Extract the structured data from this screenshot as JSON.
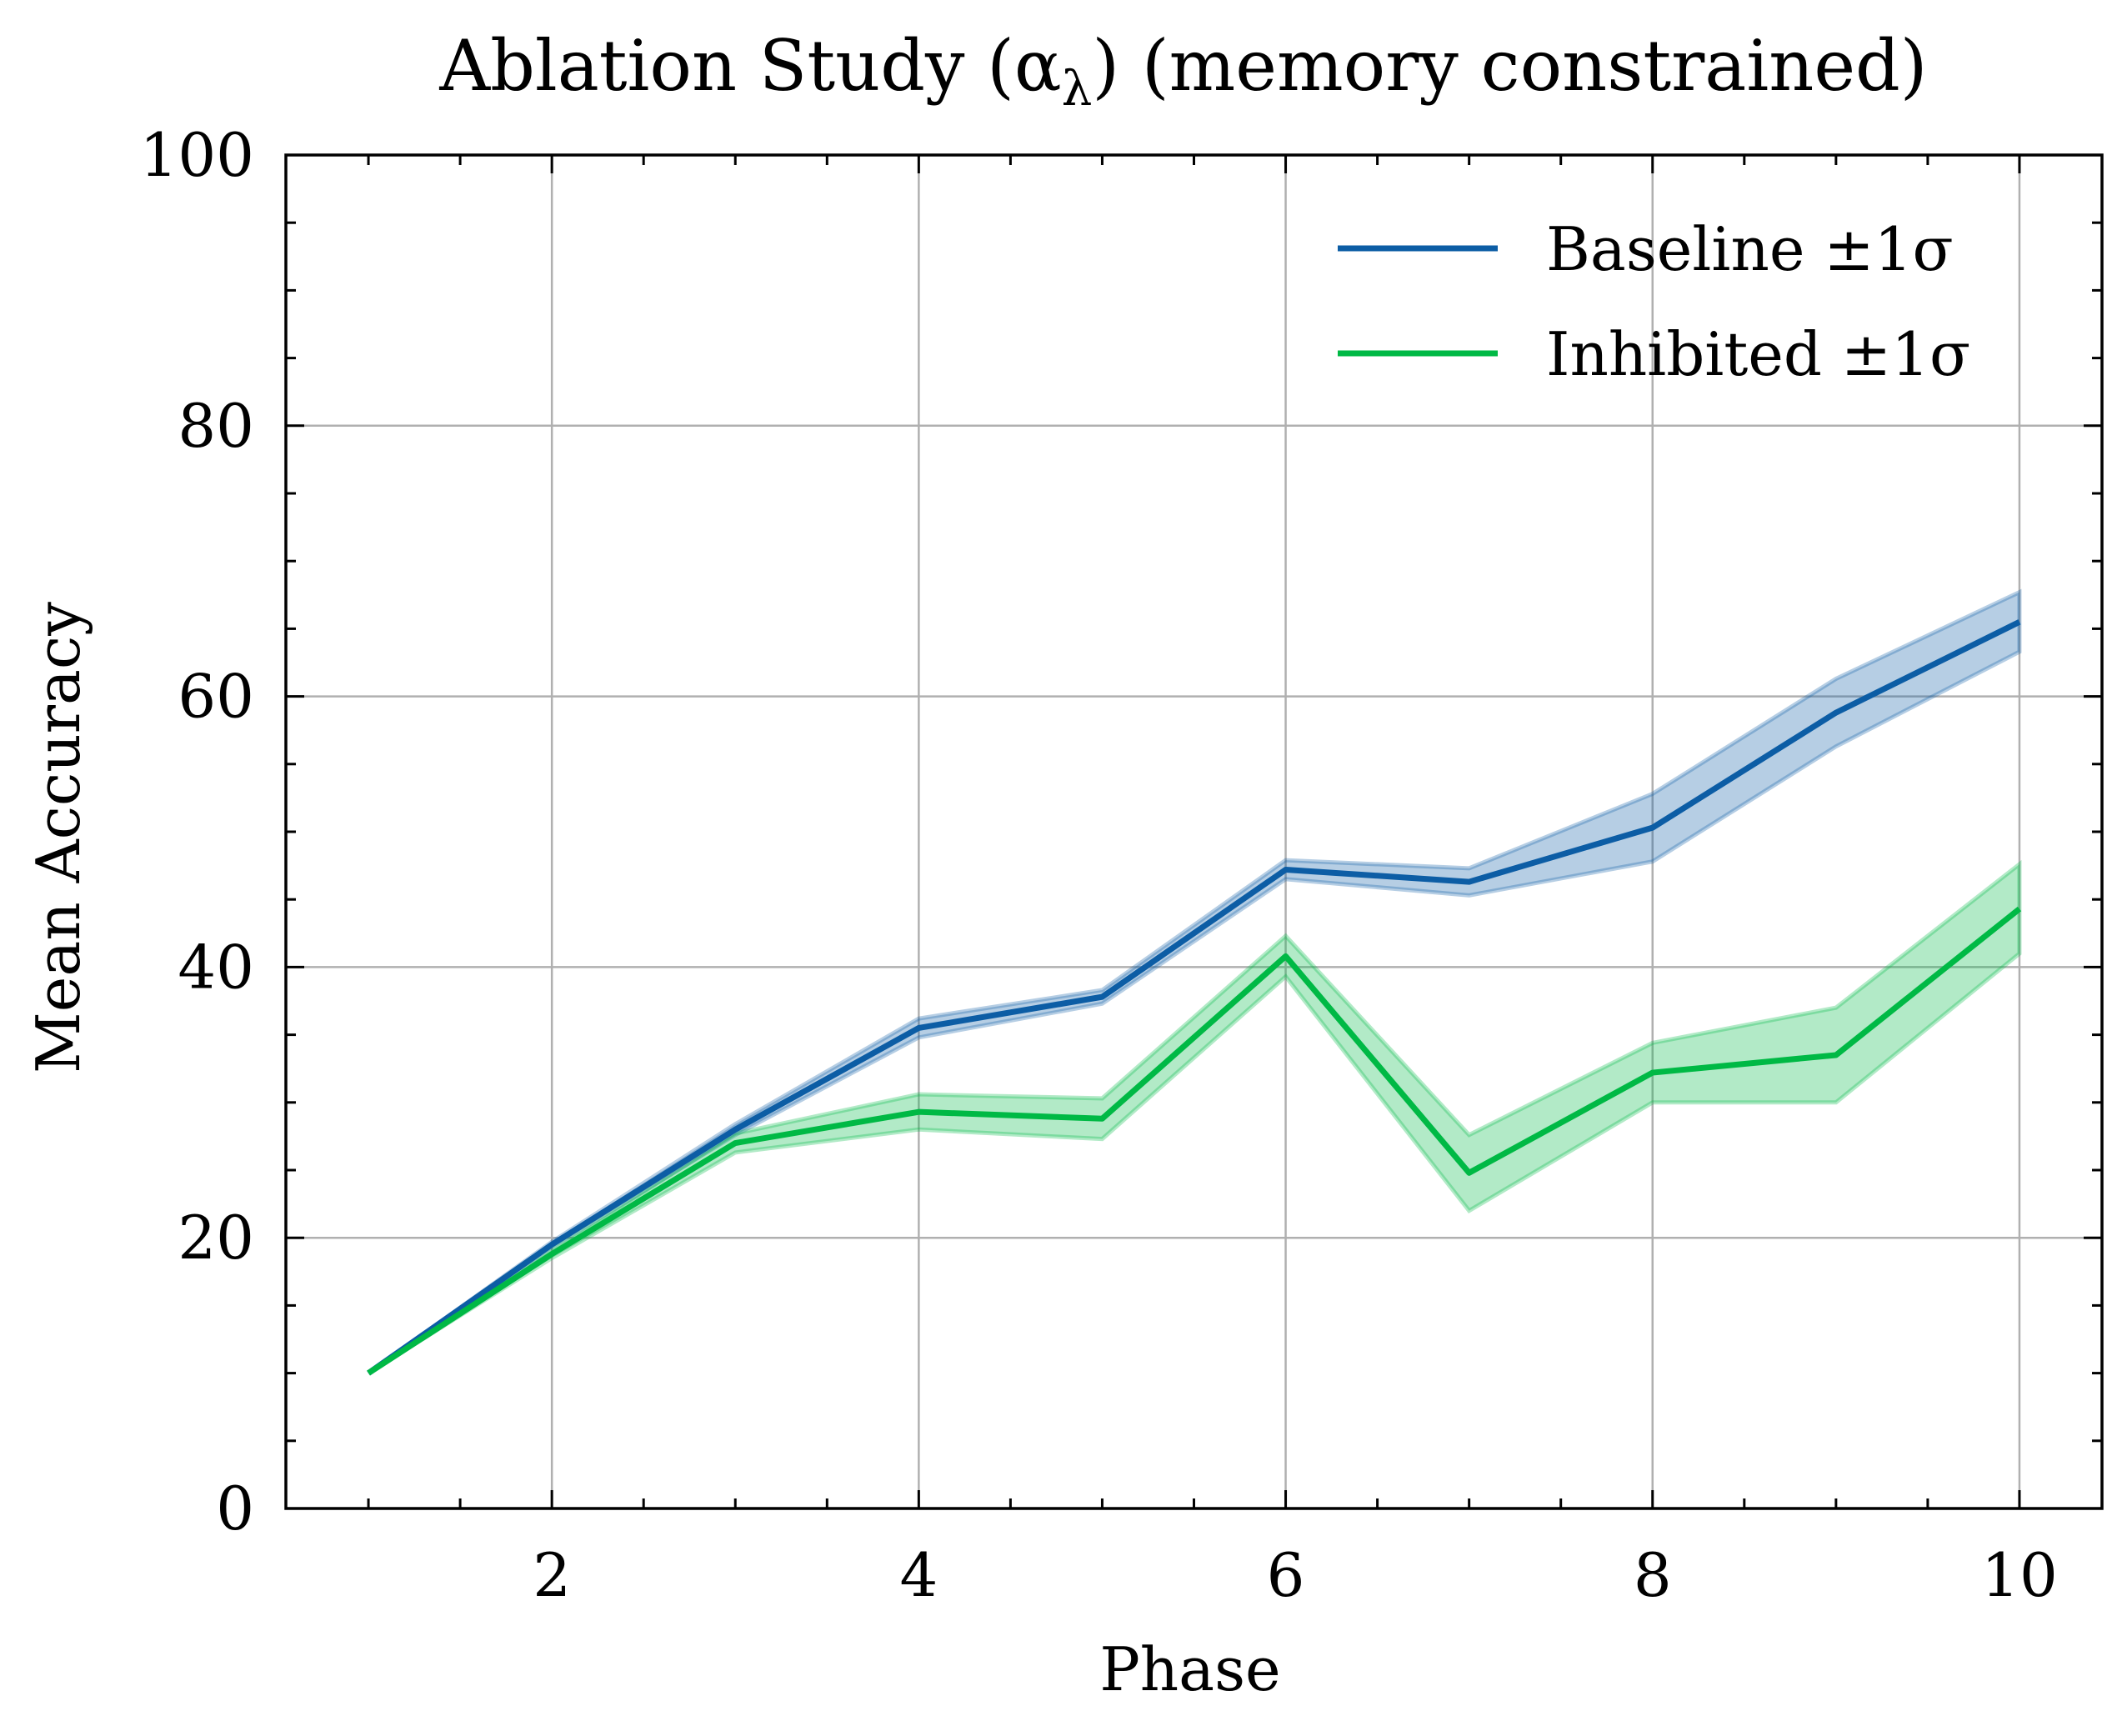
{
  "chart_data": {
    "type": "line",
    "title": "Ablation Study (α",
    "title_subscript": "λ",
    "title_suffix": ") (memory constrained)",
    "xlabel": "Phase",
    "ylabel": "Mean Accuracy",
    "xlim": [
      0.55,
      10.45
    ],
    "ylim": [
      0,
      100
    ],
    "xticks": [
      2,
      4,
      6,
      8,
      10
    ],
    "yticks": [
      0,
      20,
      40,
      60,
      80,
      100
    ],
    "xtick_labels": [
      "2",
      "4",
      "6",
      "8",
      "10"
    ],
    "ytick_labels": [
      "0",
      "20",
      "40",
      "60",
      "80",
      "100"
    ],
    "x_minor_step": 0.5,
    "y_minor_step": 5,
    "grid": true,
    "legend_position": "top-right",
    "x": [
      1,
      2,
      3,
      4,
      5,
      6,
      7,
      8,
      9,
      10
    ],
    "series": [
      {
        "name": "Baseline ±1σ",
        "color": "#0C5DA5",
        "values": [
          10.0,
          19.5,
          28.0,
          35.5,
          37.8,
          47.2,
          46.3,
          50.3,
          58.8,
          65.5
        ],
        "lower": [
          10.0,
          19.3,
          27.6,
          34.8,
          37.3,
          46.5,
          45.3,
          47.8,
          56.3,
          63.3
        ],
        "upper": [
          10.0,
          19.7,
          28.4,
          36.2,
          38.3,
          47.9,
          47.3,
          52.8,
          61.3,
          67.7
        ]
      },
      {
        "name": "Inhibited ±1σ",
        "color": "#00B945",
        "values": [
          10.0,
          18.8,
          27.0,
          29.3,
          28.8,
          40.8,
          24.8,
          32.2,
          33.5,
          44.3
        ],
        "lower": [
          10.0,
          18.5,
          26.3,
          28.0,
          27.3,
          39.3,
          22.0,
          30.0,
          30.0,
          41.0
        ],
        "upper": [
          10.0,
          19.1,
          27.7,
          30.6,
          30.3,
          42.3,
          27.6,
          34.4,
          37.0,
          47.6
        ]
      }
    ]
  }
}
